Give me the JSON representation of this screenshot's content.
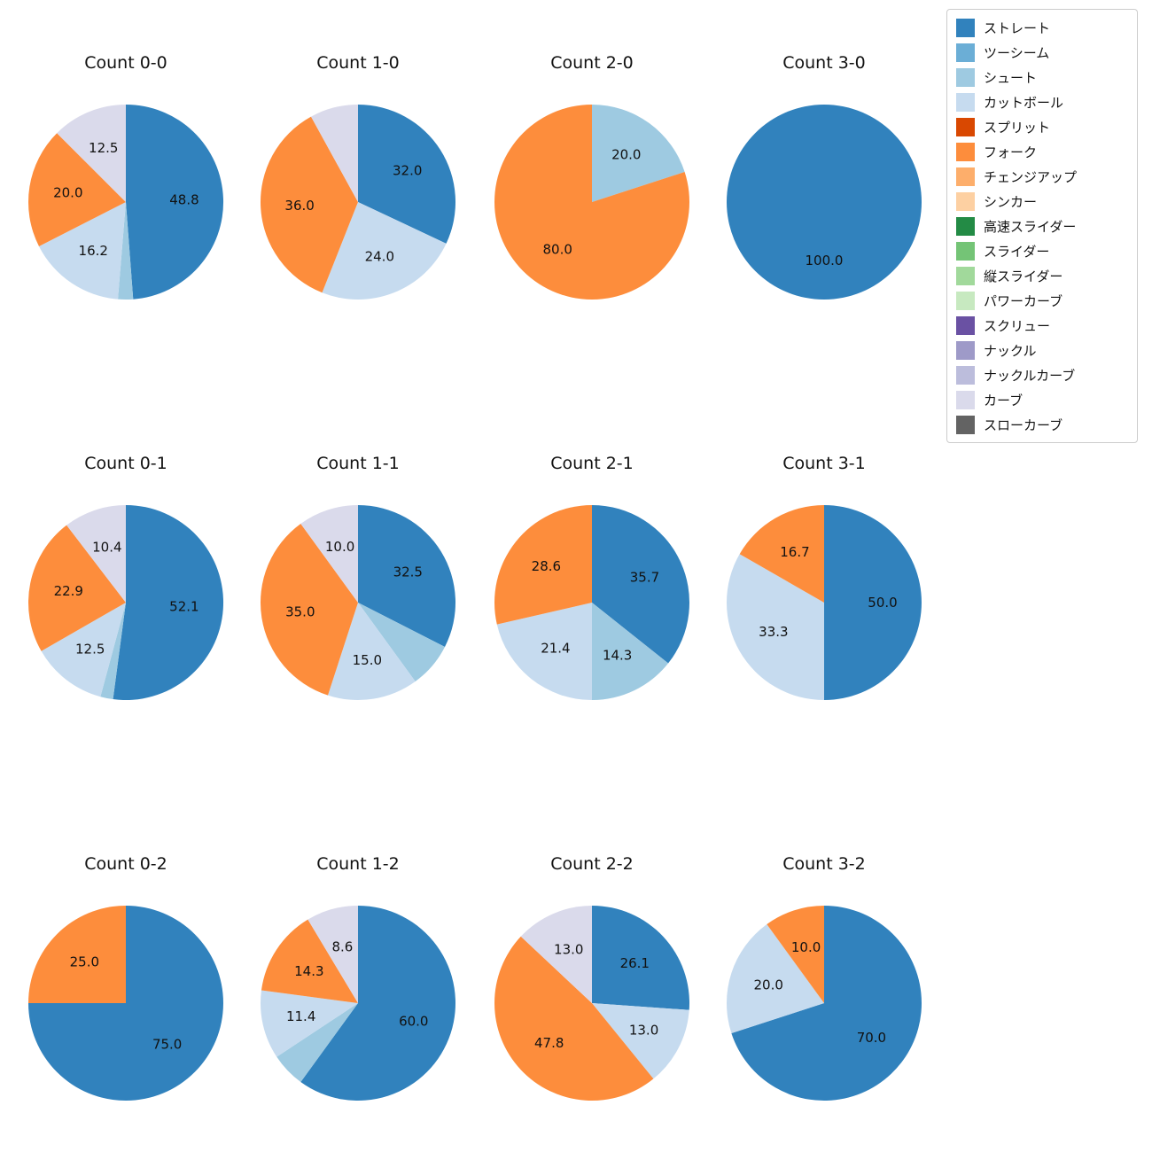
{
  "figure": {
    "background": "#ffffff"
  },
  "chart_data": {
    "type": "pie",
    "unit": "percent",
    "start_angle": 90,
    "direction": "clockwise",
    "label_radius_fraction": 0.6,
    "legend_position": "upper-right",
    "legend": [
      {
        "key": "straight",
        "label": "ストレート",
        "color": "#3182bd"
      },
      {
        "key": "two-seam",
        "label": "ツーシーム",
        "color": "#6baed6"
      },
      {
        "key": "shoot",
        "label": "シュート",
        "color": "#9ecae1"
      },
      {
        "key": "cutball",
        "label": "カットボール",
        "color": "#c6dbef"
      },
      {
        "key": "split",
        "label": "スプリット",
        "color": "#d94801"
      },
      {
        "key": "fork",
        "label": "フォーク",
        "color": "#fd8d3c"
      },
      {
        "key": "changeup",
        "label": "チェンジアップ",
        "color": "#fdae6b"
      },
      {
        "key": "sinker",
        "label": "シンカー",
        "color": "#fdd0a2"
      },
      {
        "key": "fast-slider",
        "label": "高速スライダー",
        "color": "#238b45"
      },
      {
        "key": "slider",
        "label": "スライダー",
        "color": "#74c476"
      },
      {
        "key": "vertical-slider",
        "label": "縦スライダー",
        "color": "#a1d99b"
      },
      {
        "key": "power-curve",
        "label": "パワーカーブ",
        "color": "#c7e9c0"
      },
      {
        "key": "screw",
        "label": "スクリュー",
        "color": "#6a51a3"
      },
      {
        "key": "knuckle",
        "label": "ナックル",
        "color": "#9e9ac8"
      },
      {
        "key": "knuckle-curve",
        "label": "ナックルカーブ",
        "color": "#bcbddc"
      },
      {
        "key": "curve",
        "label": "カーブ",
        "color": "#dadaeb"
      },
      {
        "key": "slow-curve",
        "label": "スローカーブ",
        "color": "#636363"
      }
    ],
    "charts": [
      {
        "title": "Count 0-0",
        "slices": [
          {
            "name": "ストレート",
            "value": 48.8,
            "label": "48.8"
          },
          {
            "name": "シュート",
            "value": 2.5,
            "label": null
          },
          {
            "name": "カットボール",
            "value": 16.2,
            "label": "16.2"
          },
          {
            "name": "フォーク",
            "value": 20.0,
            "label": "20.0"
          },
          {
            "name": "カーブ",
            "value": 12.5,
            "label": "12.5"
          }
        ]
      },
      {
        "title": "Count 1-0",
        "slices": [
          {
            "name": "ストレート",
            "value": 32.0,
            "label": "32.0"
          },
          {
            "name": "カットボール",
            "value": 24.0,
            "label": "24.0"
          },
          {
            "name": "フォーク",
            "value": 36.0,
            "label": "36.0"
          },
          {
            "name": "カーブ",
            "value": 8.0,
            "label": null
          }
        ]
      },
      {
        "title": "Count 2-0",
        "slices": [
          {
            "name": "シュート",
            "value": 20.0,
            "label": "20.0"
          },
          {
            "name": "フォーク",
            "value": 80.0,
            "label": "80.0"
          }
        ]
      },
      {
        "title": "Count 3-0",
        "slices": [
          {
            "name": "ストレート",
            "value": 100.0,
            "label": "100.0"
          }
        ]
      },
      {
        "title": "Count 0-1",
        "slices": [
          {
            "name": "ストレート",
            "value": 52.1,
            "label": "52.1"
          },
          {
            "name": "シュート",
            "value": 2.1,
            "label": null
          },
          {
            "name": "カットボール",
            "value": 12.5,
            "label": "12.5"
          },
          {
            "name": "フォーク",
            "value": 22.9,
            "label": "22.9"
          },
          {
            "name": "カーブ",
            "value": 10.4,
            "label": "10.4"
          }
        ]
      },
      {
        "title": "Count 1-1",
        "slices": [
          {
            "name": "ストレート",
            "value": 32.5,
            "label": "32.5"
          },
          {
            "name": "シュート",
            "value": 7.5,
            "label": null
          },
          {
            "name": "カットボール",
            "value": 15.0,
            "label": "15.0"
          },
          {
            "name": "フォーク",
            "value": 35.0,
            "label": "35.0"
          },
          {
            "name": "カーブ",
            "value": 10.0,
            "label": "10.0"
          }
        ]
      },
      {
        "title": "Count 2-1",
        "slices": [
          {
            "name": "ストレート",
            "value": 35.7,
            "label": "35.7"
          },
          {
            "name": "シュート",
            "value": 14.3,
            "label": "14.3"
          },
          {
            "name": "カットボール",
            "value": 21.4,
            "label": "21.4"
          },
          {
            "name": "フォーク",
            "value": 28.6,
            "label": "28.6"
          }
        ]
      },
      {
        "title": "Count 3-1",
        "slices": [
          {
            "name": "ストレート",
            "value": 50.0,
            "label": "50.0"
          },
          {
            "name": "カットボール",
            "value": 33.3,
            "label": "33.3"
          },
          {
            "name": "フォーク",
            "value": 16.7,
            "label": "16.7"
          }
        ]
      },
      {
        "title": "Count 0-2",
        "slices": [
          {
            "name": "ストレート",
            "value": 75.0,
            "label": "75.0"
          },
          {
            "name": "フォーク",
            "value": 25.0,
            "label": "25.0"
          }
        ]
      },
      {
        "title": "Count 1-2",
        "slices": [
          {
            "name": "ストレート",
            "value": 60.0,
            "label": "60.0"
          },
          {
            "name": "シュート",
            "value": 5.7,
            "label": null
          },
          {
            "name": "カットボール",
            "value": 11.4,
            "label": "11.4"
          },
          {
            "name": "フォーク",
            "value": 14.3,
            "label": "14.3"
          },
          {
            "name": "カーブ",
            "value": 8.6,
            "label": "8.6"
          }
        ]
      },
      {
        "title": "Count 2-2",
        "slices": [
          {
            "name": "ストレート",
            "value": 26.1,
            "label": "26.1"
          },
          {
            "name": "カットボール",
            "value": 13.0,
            "label": "13.0"
          },
          {
            "name": "フォーク",
            "value": 47.8,
            "label": "47.8"
          },
          {
            "name": "カーブ",
            "value": 13.0,
            "label": "13.0"
          }
        ]
      },
      {
        "title": "Count 3-2",
        "slices": [
          {
            "name": "ストレート",
            "value": 70.0,
            "label": "70.0"
          },
          {
            "name": "カットボール",
            "value": 20.0,
            "label": "20.0"
          },
          {
            "name": "フォーク",
            "value": 10.0,
            "label": "10.0"
          }
        ]
      }
    ]
  }
}
